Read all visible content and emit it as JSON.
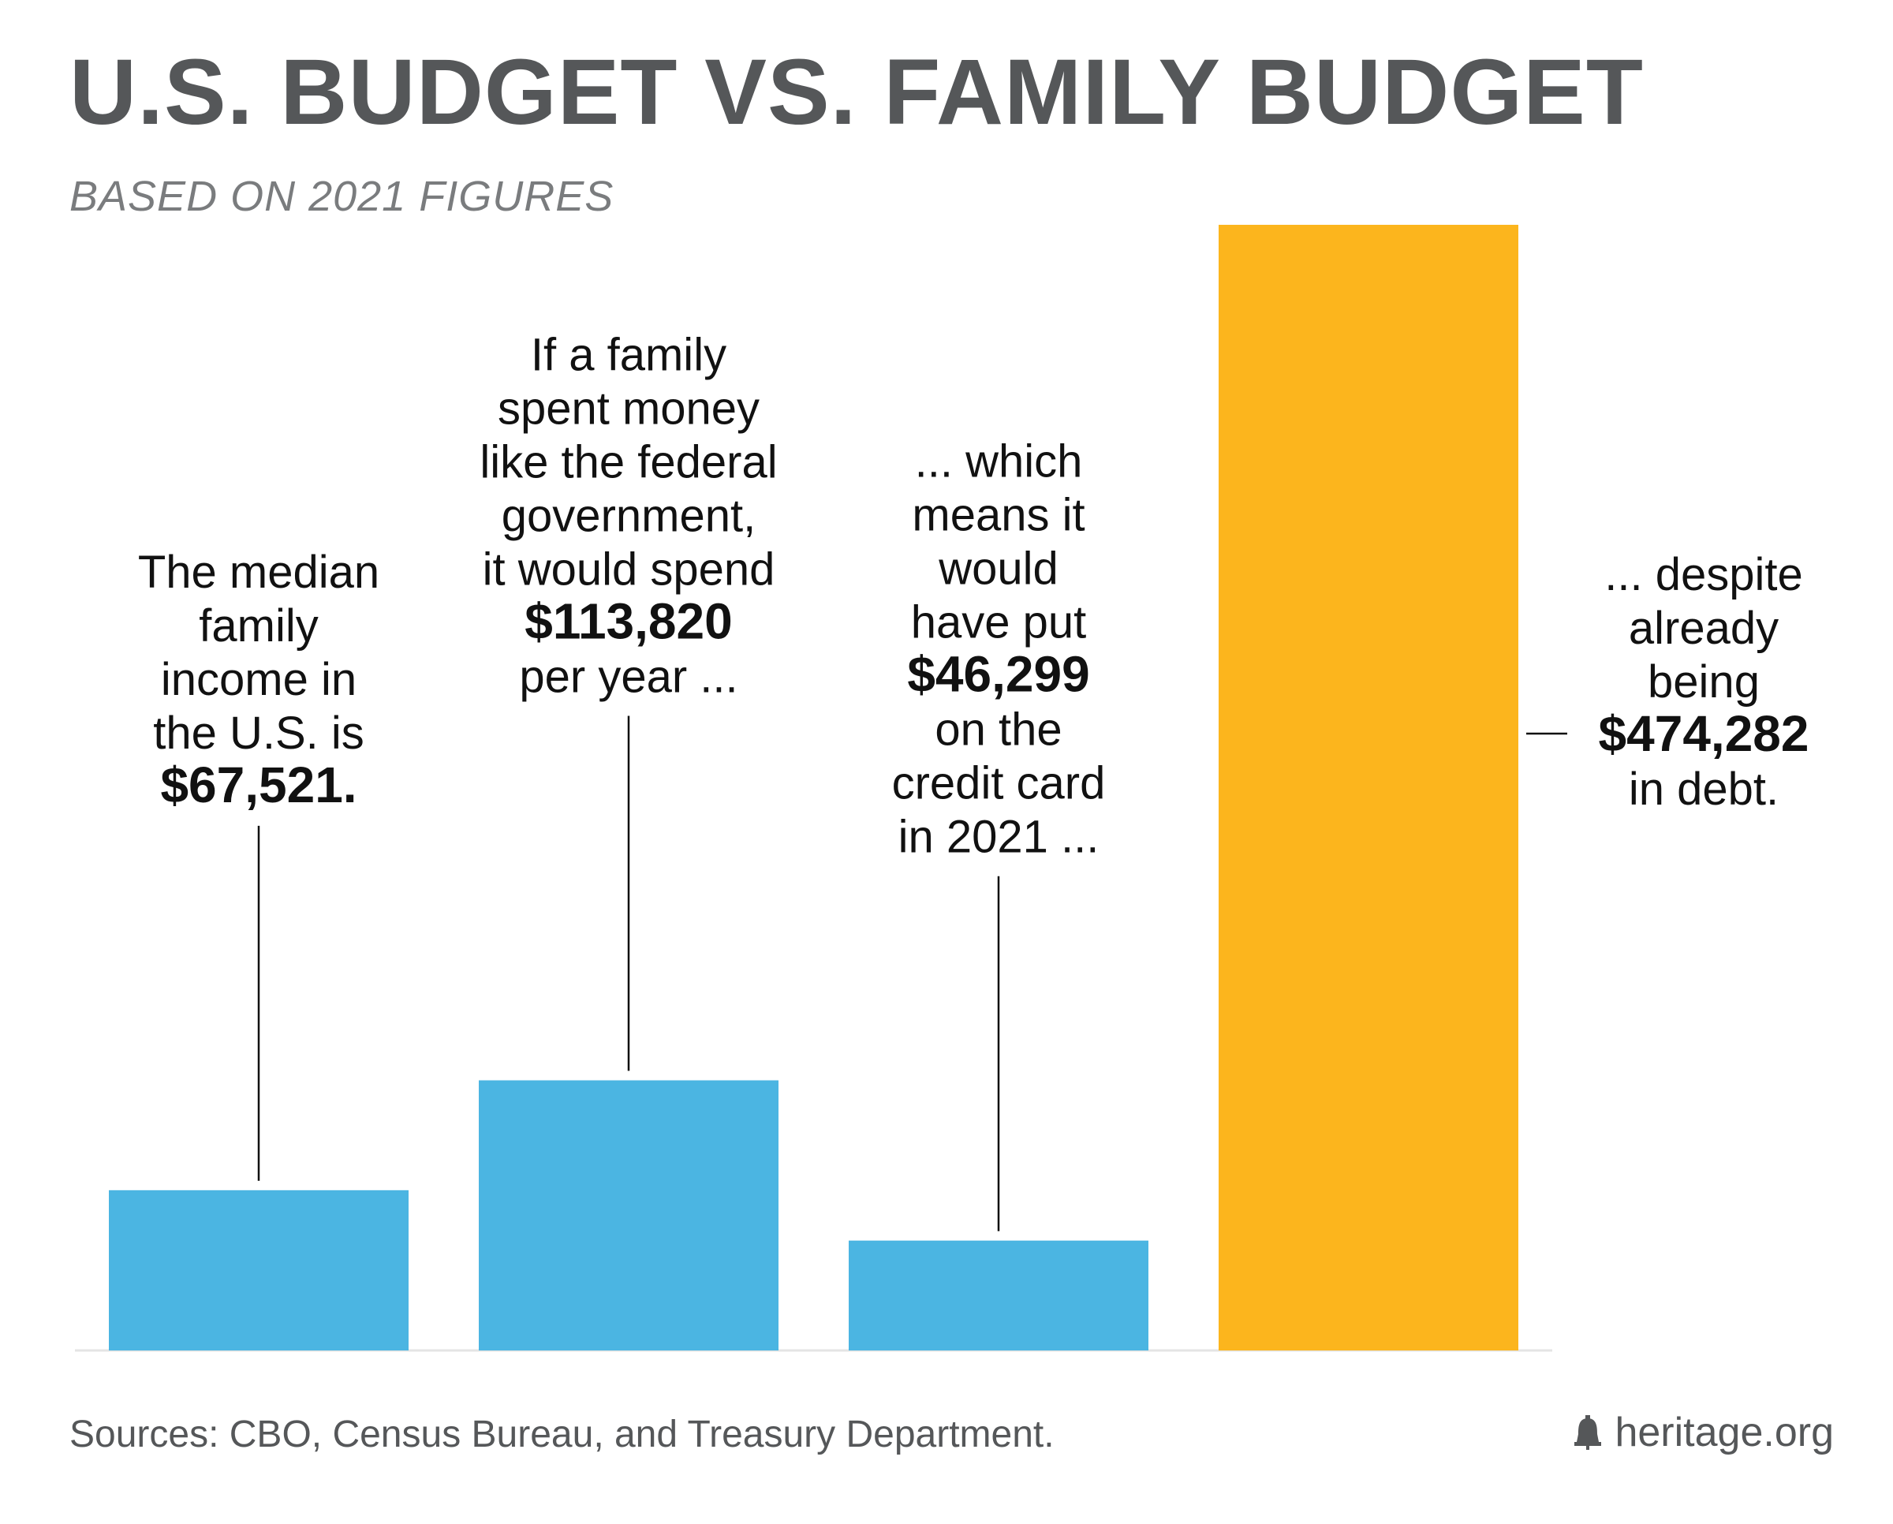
{
  "header": {
    "title": "U.S. BUDGET VS. FAMILY BUDGET",
    "subtitle": "BASED ON 2021 FIGURES"
  },
  "footer": {
    "sources": "Sources: CBO, Census Bureau, and Treasury Department.",
    "brand": "heritage.org",
    "brand_icon": "liberty-bell-icon"
  },
  "colors": {
    "bar_blue": "#4bb5e2",
    "bar_gold": "#fcb51d",
    "title_gray": "#555759",
    "leader_line": "#111111"
  },
  "chart_data": {
    "type": "bar",
    "title": "U.S. BUDGET VS. FAMILY BUDGET",
    "subtitle": "BASED ON 2021 FIGURES",
    "xlabel": "",
    "ylabel": "",
    "ylim": [
      0,
      474282
    ],
    "grid": false,
    "legend": "none",
    "bars": [
      {
        "value": 67521,
        "color": "#4bb5e2",
        "annotation": {
          "position": "above",
          "lines": [
            {
              "text": "The median",
              "bold": false
            },
            {
              "text": "family",
              "bold": false
            },
            {
              "text": "income in",
              "bold": false
            },
            {
              "text": "the U.S. is",
              "bold": false
            },
            {
              "text": "$67,521.",
              "bold": true
            }
          ]
        }
      },
      {
        "value": 113820,
        "color": "#4bb5e2",
        "annotation": {
          "position": "above",
          "lines": [
            {
              "text": "If a family",
              "bold": false
            },
            {
              "text": "spent money",
              "bold": false
            },
            {
              "text": "like the federal",
              "bold": false
            },
            {
              "text": "government,",
              "bold": false
            },
            {
              "text": "it would spend",
              "bold": false
            },
            {
              "text": "$113,820",
              "bold": true
            },
            {
              "text": "per year ...",
              "bold": false
            }
          ]
        }
      },
      {
        "value": 46299,
        "color": "#4bb5e2",
        "annotation": {
          "position": "above",
          "lines": [
            {
              "text": "... which",
              "bold": false
            },
            {
              "text": "means it",
              "bold": false
            },
            {
              "text": "would",
              "bold": false
            },
            {
              "text": "have put",
              "bold": false
            },
            {
              "text": "$46,299",
              "bold": true
            },
            {
              "text": "on the",
              "bold": false
            },
            {
              "text": "credit card",
              "bold": false
            },
            {
              "text": "in 2021 ...",
              "bold": false
            }
          ]
        }
      },
      {
        "value": 474282,
        "color": "#fcb51d",
        "annotation": {
          "position": "right",
          "lines": [
            {
              "text": "... despite",
              "bold": false
            },
            {
              "text": "already",
              "bold": false
            },
            {
              "text": "being",
              "bold": false
            },
            {
              "text": "$474,282",
              "bold": true
            },
            {
              "text": "in debt.",
              "bold": false
            }
          ]
        }
      }
    ]
  }
}
